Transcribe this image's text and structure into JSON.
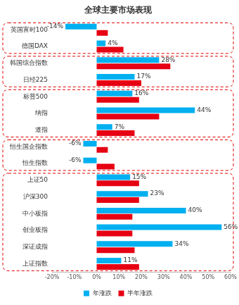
{
  "chart_data": {
    "type": "bar",
    "title": "全球主要市场表现",
    "orientation": "horizontal",
    "categories": [
      "英国富时100",
      "德国DAX",
      "韩国综合指数",
      "日经225",
      "标普500",
      "纳指",
      "道指",
      "恒生国企指数",
      "恒生指数",
      "上证50",
      "沪深300",
      "中小板指",
      "创业板指",
      "深证成指",
      "上证指数"
    ],
    "series": [
      {
        "name": "年涨跌",
        "color": "#00b0f0",
        "data_labels": true,
        "values": [
          -14,
          4,
          28,
          17,
          16,
          44,
          7,
          -6,
          -6,
          15,
          23,
          40,
          56,
          34,
          11
        ],
        "value_labels": [
          "-14%",
          "4%",
          "28%",
          "17%",
          "16%",
          "44%",
          "7%",
          "-6%",
          "-6%",
          "15%",
          "23%",
          "40%",
          "56%",
          "34%",
          "11%"
        ]
      },
      {
        "name": "半年涨跌",
        "color": "#e60012",
        "values": [
          5,
          12,
          33,
          20,
          19,
          28,
          17,
          5,
          8,
          19,
          19,
          16,
          16,
          17,
          19
        ]
      }
    ],
    "xlim": [
      -20,
      60
    ],
    "xticks": [
      {
        "value": -20,
        "label": "-20%"
      },
      {
        "value": -10,
        "label": "-10%"
      },
      {
        "value": 0,
        "label": "0%"
      },
      {
        "value": 10,
        "label": "10%"
      },
      {
        "value": 20,
        "label": "20%"
      },
      {
        "value": 30,
        "label": "30%"
      },
      {
        "value": 40,
        "label": "40%"
      },
      {
        "value": 50,
        "label": "50%"
      },
      {
        "value": 60,
        "label": "60%"
      }
    ],
    "grid": false,
    "legend": "bottom"
  }
}
